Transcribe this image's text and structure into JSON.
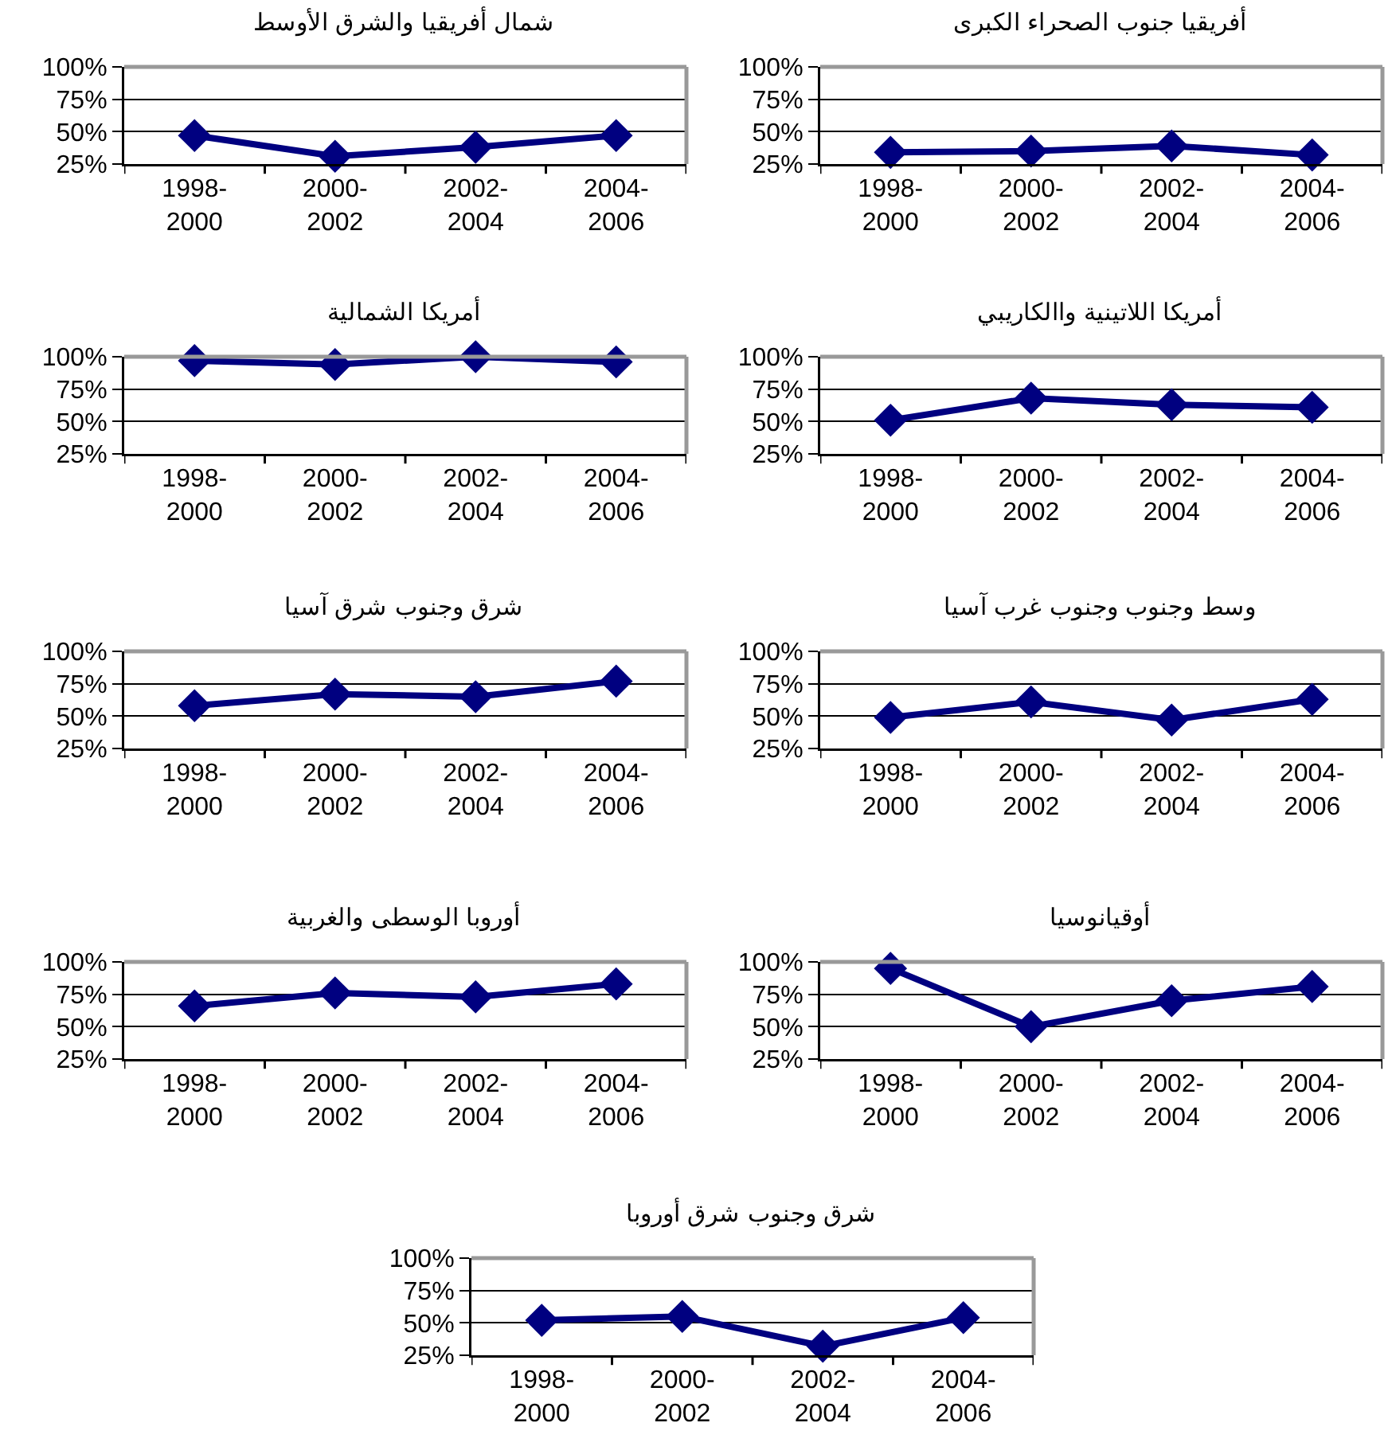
{
  "chart_data": [
    {
      "type": "line",
      "title": "أفريقيا جنوب الصحراء الكبرى",
      "categories": [
        "1998-2000",
        "2000-2002",
        "2002-2004",
        "2004-2006"
      ],
      "series": [
        {
          "color": "#000080",
          "values": [
            34,
            35,
            39,
            32
          ]
        }
      ],
      "ylim": [
        25,
        100
      ],
      "yticks": [
        {
          "value": 25,
          "label": "25%"
        },
        {
          "value": 50,
          "label": "50%"
        },
        {
          "value": 75,
          "label": "75%"
        },
        {
          "value": 100,
          "label": "100%"
        }
      ],
      "grid": "y",
      "marker": "diamond",
      "line_style": "solid"
    },
    {
      "type": "line",
      "title": "شمال أفريقيا والشرق الأوسط",
      "categories": [
        "1998-2000",
        "2000-2002",
        "2002-2004",
        "2004-2006"
      ],
      "series": [
        {
          "color": "#000080",
          "values": [
            47,
            31,
            38,
            47
          ]
        }
      ],
      "ylim": [
        25,
        100
      ],
      "yticks": [
        {
          "value": 25,
          "label": "25%"
        },
        {
          "value": 50,
          "label": "50%"
        },
        {
          "value": 75,
          "label": "75%"
        },
        {
          "value": 100,
          "label": "100%"
        }
      ],
      "grid": "y",
      "marker": "diamond",
      "line_style": "solid"
    },
    {
      "type": "line",
      "title": "أمريكا اللاتينية واالكاريبي",
      "categories": [
        "1998-2000",
        "2000-2002",
        "2002-2004",
        "2004-2006"
      ],
      "series": [
        {
          "color": "#000080",
          "values": [
            51,
            68,
            63,
            61
          ]
        }
      ],
      "ylim": [
        25,
        100
      ],
      "yticks": [
        {
          "value": 25,
          "label": "25%"
        },
        {
          "value": 50,
          "label": "50%"
        },
        {
          "value": 75,
          "label": "75%"
        },
        {
          "value": 100,
          "label": "100%"
        }
      ],
      "grid": "y",
      "marker": "diamond",
      "line_style": "solid"
    },
    {
      "type": "line",
      "title": "أمريكا الشمالية",
      "categories": [
        "1998-2000",
        "2000-2002",
        "2002-2004",
        "2004-2006"
      ],
      "series": [
        {
          "color": "#000080",
          "values": [
            97,
            94,
            100,
            96
          ]
        }
      ],
      "ylim": [
        25,
        100
      ],
      "yticks": [
        {
          "value": 25,
          "label": "25%"
        },
        {
          "value": 50,
          "label": "50%"
        },
        {
          "value": 75,
          "label": "75%"
        },
        {
          "value": 100,
          "label": "100%"
        }
      ],
      "grid": "y",
      "marker": "diamond",
      "line_style": "solid"
    },
    {
      "type": "line",
      "title": "وسط وجنوب وجنوب غرب آسيا",
      "categories": [
        "1998-2000",
        "2000-2002",
        "2002-2004",
        "2004-2006"
      ],
      "series": [
        {
          "color": "#000080",
          "values": [
            49,
            61,
            47,
            63
          ]
        }
      ],
      "ylim": [
        25,
        100
      ],
      "yticks": [
        {
          "value": 25,
          "label": "25%"
        },
        {
          "value": 50,
          "label": "50%"
        },
        {
          "value": 75,
          "label": "75%"
        },
        {
          "value": 100,
          "label": "100%"
        }
      ],
      "grid": "y",
      "marker": "diamond",
      "line_style": "solid"
    },
    {
      "type": "line",
      "title": "شرق وجنوب شرق آسيا",
      "categories": [
        "1998-2000",
        "2000-2002",
        "2002-2004",
        "2004-2006"
      ],
      "series": [
        {
          "color": "#000080",
          "values": [
            58,
            67,
            65,
            77
          ]
        }
      ],
      "ylim": [
        25,
        100
      ],
      "yticks": [
        {
          "value": 25,
          "label": "25%"
        },
        {
          "value": 50,
          "label": "50%"
        },
        {
          "value": 75,
          "label": "75%"
        },
        {
          "value": 100,
          "label": "100%"
        }
      ],
      "grid": "y",
      "marker": "diamond",
      "line_style": "solid"
    },
    {
      "type": "line",
      "title": "أوقيانوسيا",
      "categories": [
        "1998-2000",
        "2000-2002",
        "2002-2004",
        "2004-2006"
      ],
      "series": [
        {
          "color": "#000080",
          "values": [
            95,
            50,
            70,
            81
          ]
        }
      ],
      "ylim": [
        25,
        100
      ],
      "yticks": [
        {
          "value": 25,
          "label": "25%"
        },
        {
          "value": 50,
          "label": "50%"
        },
        {
          "value": 75,
          "label": "75%"
        },
        {
          "value": 100,
          "label": "100%"
        }
      ],
      "grid": "y",
      "marker": "diamond",
      "line_style": "solid"
    },
    {
      "type": "line",
      "title": "أوروبا الوسطى والغربية",
      "categories": [
        "1998-2000",
        "2000-2002",
        "2002-2004",
        "2004-2006"
      ],
      "series": [
        {
          "color": "#000080",
          "values": [
            66,
            76,
            73,
            83
          ]
        }
      ],
      "ylim": [
        25,
        100
      ],
      "yticks": [
        {
          "value": 25,
          "label": "25%"
        },
        {
          "value": 50,
          "label": "50%"
        },
        {
          "value": 75,
          "label": "75%"
        },
        {
          "value": 100,
          "label": "100%"
        }
      ],
      "grid": "y",
      "marker": "diamond",
      "line_style": "solid"
    },
    {
      "type": "line",
      "title": "شرق وجنوب شرق أوروبا",
      "categories": [
        "1998-2000",
        "2000-2002",
        "2002-2004",
        "2004-2006"
      ],
      "series": [
        {
          "color": "#000080",
          "values": [
            52,
            55,
            32,
            54
          ]
        }
      ],
      "ylim": [
        25,
        100
      ],
      "yticks": [
        {
          "value": 25,
          "label": "25%"
        },
        {
          "value": 50,
          "label": "50%"
        },
        {
          "value": 75,
          "label": "75%"
        },
        {
          "value": 100,
          "label": "100%"
        }
      ],
      "grid": "y",
      "marker": "diamond",
      "line_style": "solid"
    }
  ]
}
